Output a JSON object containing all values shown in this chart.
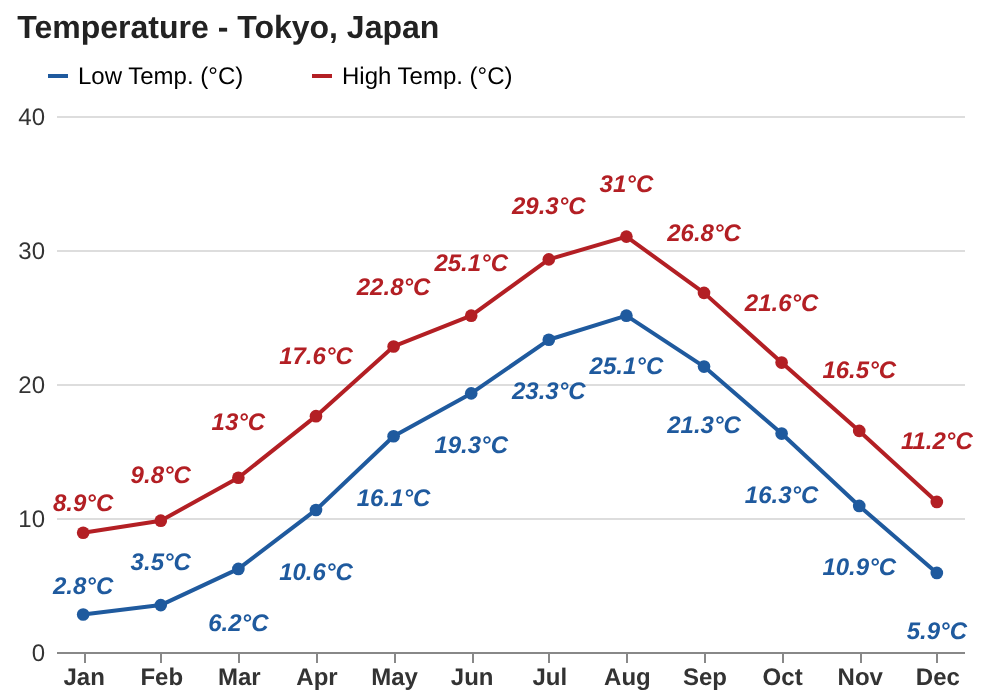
{
  "chart_data": {
    "type": "line",
    "title": "Temperature - Tokyo, Japan",
    "categories": [
      "Jan",
      "Feb",
      "Mar",
      "Apr",
      "May",
      "Jun",
      "Jul",
      "Aug",
      "Sep",
      "Oct",
      "Nov",
      "Dec"
    ],
    "series": [
      {
        "name": "Low Temp. (°C)",
        "color": "#1f5a9e",
        "values": [
          2.8,
          3.5,
          6.2,
          10.6,
          16.1,
          19.3,
          23.3,
          25.1,
          21.3,
          16.3,
          10.9,
          5.9
        ],
        "value_labels": [
          "2.8°C",
          "3.5°C",
          "6.2°C",
          "10.6°C",
          "16.1°C",
          "19.3°C",
          "23.3°C",
          "25.1°C",
          "21.3°C",
          "16.3°C",
          "10.9°C",
          "5.9°C"
        ]
      },
      {
        "name": "High Temp. (°C)",
        "color": "#b31f24",
        "values": [
          8.9,
          9.8,
          13,
          17.6,
          22.8,
          25.1,
          29.3,
          31,
          26.8,
          21.6,
          16.5,
          11.2
        ],
        "value_labels": [
          "8.9°C",
          "9.8°C",
          "13°C",
          "17.6°C",
          "22.8°C",
          "25.1°C",
          "29.3°C",
          "31°C",
          "26.8°C",
          "21.6°C",
          "16.5°C",
          "11.2°C"
        ]
      }
    ],
    "ylim": [
      0,
      40
    ],
    "yticks": [
      0,
      10,
      20,
      30,
      40
    ],
    "grid": "y",
    "legend": "top left",
    "marker": "circle",
    "line_style": "solid"
  }
}
